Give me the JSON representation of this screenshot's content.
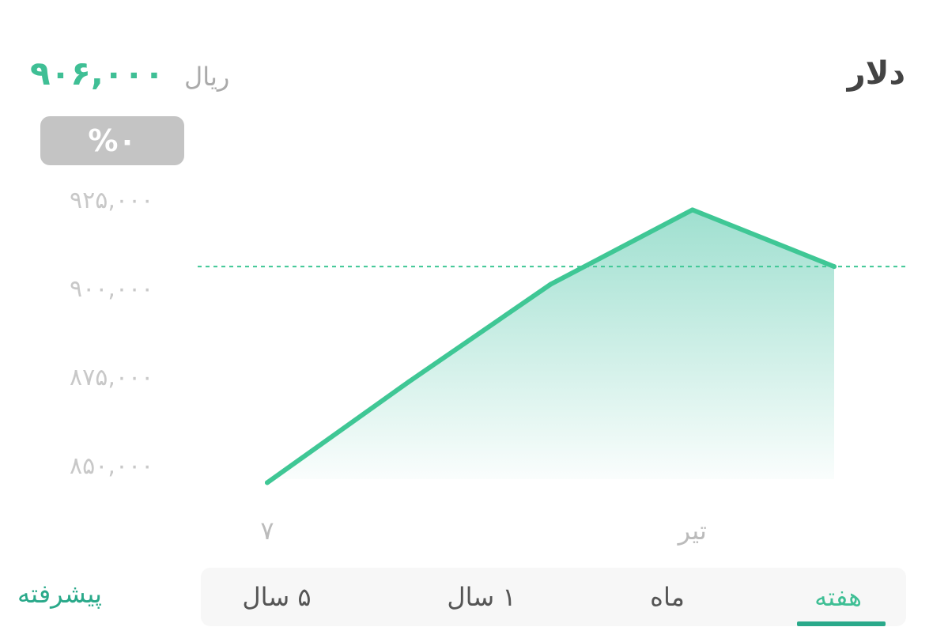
{
  "header": {
    "asset_name": "دلار",
    "price": "۹۰۶,۰۰۰",
    "unit": "ریال",
    "change": "%۰"
  },
  "chart_data": {
    "type": "area",
    "y_tick_labels": [
      "۹۲۵,۰۰۰",
      "۹۰۰,۰۰۰",
      "۸۷۵,۰۰۰",
      "۸۵۰,۰۰۰"
    ],
    "y_ticks": [
      925000,
      900000,
      875000,
      850000
    ],
    "ylim": [
      850000,
      925000
    ],
    "x_tick_labels": [
      "۷",
      "تیر"
    ],
    "x_tick_positions": [
      0,
      3
    ],
    "x": [
      0,
      1,
      2,
      3,
      4
    ],
    "values": [
      845000,
      873500,
      901000,
      922000,
      906000
    ],
    "reference_line": 906000,
    "colors": {
      "line": "#3fc795",
      "fill": "#3fc0a0",
      "reference": "#3fc795"
    },
    "grid": false,
    "legend": "none"
  },
  "range_tabs": {
    "items": [
      {
        "label": "هفته",
        "active": true
      },
      {
        "label": "ماه",
        "active": false
      },
      {
        "label": "۱ سال",
        "active": false
      },
      {
        "label": "۵ سال",
        "active": false
      }
    ]
  },
  "advanced": {
    "label": "پیشرفته"
  }
}
